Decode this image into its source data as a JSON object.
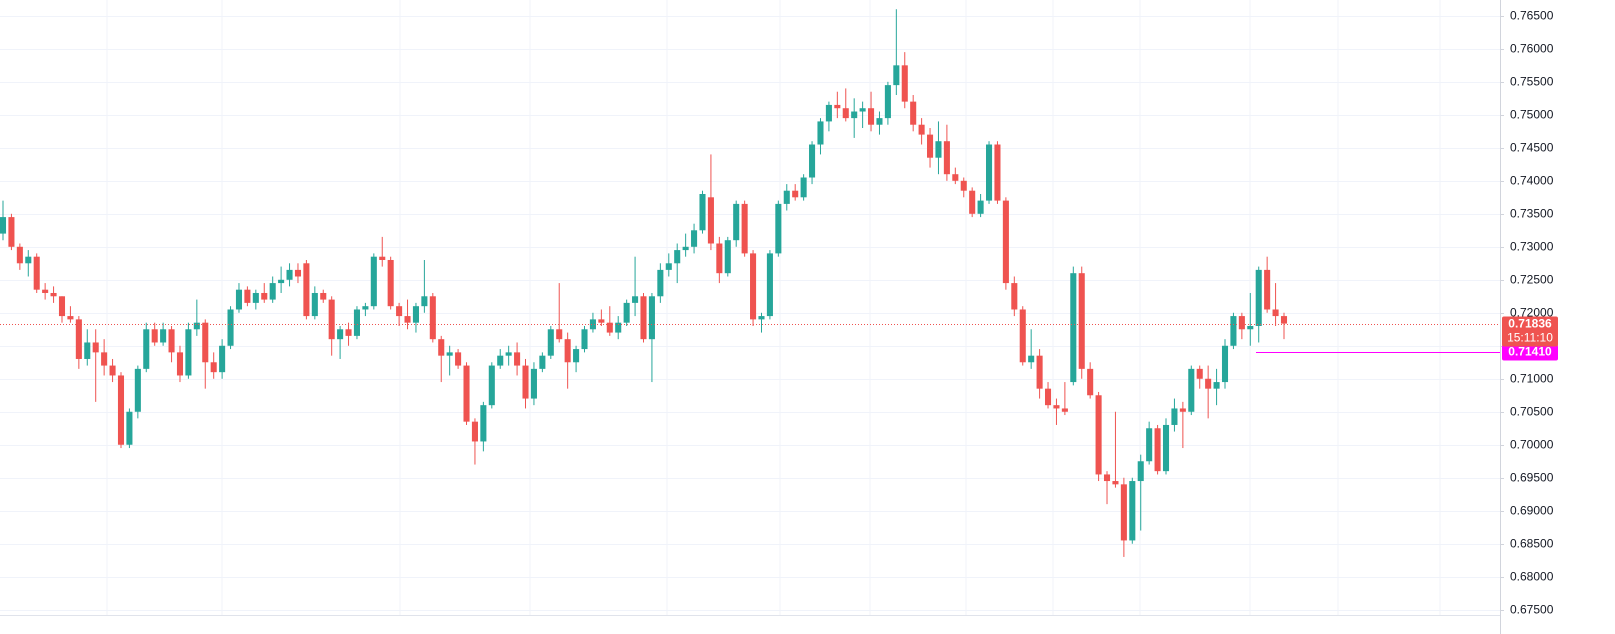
{
  "chart_data": {
    "type": "candlestick",
    "up_color": "#26a69a",
    "down_color": "#ef5350",
    "grid": true,
    "ylim": [
      0.6742,
      0.7674
    ],
    "yticks": [
      {
        "value": 0.675,
        "label": "0.67500"
      },
      {
        "value": 0.68,
        "label": "0.68000"
      },
      {
        "value": 0.685,
        "label": "0.68500"
      },
      {
        "value": 0.69,
        "label": "0.69000"
      },
      {
        "value": 0.695,
        "label": "0.69500"
      },
      {
        "value": 0.7,
        "label": "0.70000"
      },
      {
        "value": 0.705,
        "label": "0.70500"
      },
      {
        "value": 0.71,
        "label": "0.71000"
      },
      {
        "value": 0.715,
        "label": "0.71500"
      },
      {
        "value": 0.72,
        "label": "0.72000"
      },
      {
        "value": 0.725,
        "label": "0.72500"
      },
      {
        "value": 0.73,
        "label": "0.73000"
      },
      {
        "value": 0.735,
        "label": "0.73500"
      },
      {
        "value": 0.74,
        "label": "0.74000"
      },
      {
        "value": 0.745,
        "label": "0.74500"
      },
      {
        "value": 0.75,
        "label": "0.75000"
      },
      {
        "value": 0.755,
        "label": "0.75500"
      },
      {
        "value": 0.76,
        "label": "0.76000"
      },
      {
        "value": 0.765,
        "label": "0.76500"
      }
    ],
    "last_price": 0.71836,
    "countdown": "15:11:10",
    "last_price_color": "#ef5350",
    "level": {
      "value": 0.7141,
      "label": "0.71410"
    },
    "level_color": "#ff00ff",
    "ohlc": [
      [
        0.732,
        0.737,
        0.731,
        0.7345
      ],
      [
        0.7345,
        0.735,
        0.7295,
        0.73
      ],
      [
        0.73,
        0.7305,
        0.7265,
        0.7275
      ],
      [
        0.7275,
        0.7295,
        0.7255,
        0.7285
      ],
      [
        0.7285,
        0.729,
        0.723,
        0.7235
      ],
      [
        0.7235,
        0.7245,
        0.722,
        0.723
      ],
      [
        0.723,
        0.724,
        0.7215,
        0.7225
      ],
      [
        0.7225,
        0.7225,
        0.7185,
        0.7195
      ],
      [
        0.7195,
        0.721,
        0.7185,
        0.719
      ],
      [
        0.719,
        0.7195,
        0.7115,
        0.713
      ],
      [
        0.713,
        0.7175,
        0.712,
        0.7155
      ],
      [
        0.7155,
        0.7175,
        0.7065,
        0.714
      ],
      [
        0.714,
        0.716,
        0.7105,
        0.712
      ],
      [
        0.712,
        0.713,
        0.7095,
        0.7105
      ],
      [
        0.7105,
        0.711,
        0.6995,
        0.7
      ],
      [
        0.7,
        0.7055,
        0.6995,
        0.705
      ],
      [
        0.705,
        0.712,
        0.704,
        0.7115
      ],
      [
        0.7115,
        0.7185,
        0.711,
        0.7175
      ],
      [
        0.7175,
        0.7185,
        0.715,
        0.7155
      ],
      [
        0.7155,
        0.7185,
        0.715,
        0.7175
      ],
      [
        0.7175,
        0.718,
        0.7125,
        0.714
      ],
      [
        0.714,
        0.715,
        0.7095,
        0.7105
      ],
      [
        0.7105,
        0.7185,
        0.71,
        0.7175
      ],
      [
        0.7175,
        0.722,
        0.7165,
        0.7185
      ],
      [
        0.7185,
        0.719,
        0.7085,
        0.7125
      ],
      [
        0.7125,
        0.714,
        0.71,
        0.711
      ],
      [
        0.711,
        0.716,
        0.71,
        0.715
      ],
      [
        0.715,
        0.721,
        0.7145,
        0.7205
      ],
      [
        0.7205,
        0.7245,
        0.72,
        0.7235
      ],
      [
        0.7235,
        0.724,
        0.721,
        0.7215
      ],
      [
        0.7215,
        0.7235,
        0.7205,
        0.723
      ],
      [
        0.723,
        0.7245,
        0.7215,
        0.722
      ],
      [
        0.722,
        0.7255,
        0.7215,
        0.7245
      ],
      [
        0.7245,
        0.727,
        0.723,
        0.725
      ],
      [
        0.725,
        0.7275,
        0.724,
        0.7265
      ],
      [
        0.7265,
        0.7275,
        0.7245,
        0.7255
      ],
      [
        0.7275,
        0.728,
        0.719,
        0.7195
      ],
      [
        0.7195,
        0.724,
        0.719,
        0.723
      ],
      [
        0.723,
        0.7235,
        0.7215,
        0.722
      ],
      [
        0.722,
        0.7225,
        0.7135,
        0.716
      ],
      [
        0.716,
        0.718,
        0.713,
        0.7175
      ],
      [
        0.7175,
        0.7185,
        0.715,
        0.7165
      ],
      [
        0.7165,
        0.721,
        0.716,
        0.7205
      ],
      [
        0.7205,
        0.7215,
        0.7195,
        0.721
      ],
      [
        0.721,
        0.729,
        0.7205,
        0.7285
      ],
      [
        0.7285,
        0.7315,
        0.727,
        0.728
      ],
      [
        0.728,
        0.7285,
        0.7205,
        0.721
      ],
      [
        0.721,
        0.7215,
        0.718,
        0.7195
      ],
      [
        0.7195,
        0.722,
        0.7175,
        0.7185
      ],
      [
        0.7185,
        0.7215,
        0.717,
        0.721
      ],
      [
        0.721,
        0.728,
        0.72,
        0.7225
      ],
      [
        0.7225,
        0.723,
        0.7155,
        0.716
      ],
      [
        0.716,
        0.7165,
        0.7095,
        0.7135
      ],
      [
        0.7135,
        0.715,
        0.7105,
        0.714
      ],
      [
        0.714,
        0.7145,
        0.7115,
        0.712
      ],
      [
        0.712,
        0.7125,
        0.703,
        0.7035
      ],
      [
        0.7035,
        0.704,
        0.697,
        0.7005
      ],
      [
        0.7005,
        0.7065,
        0.699,
        0.706
      ],
      [
        0.706,
        0.7125,
        0.7055,
        0.712
      ],
      [
        0.712,
        0.7145,
        0.7115,
        0.7135
      ],
      [
        0.7135,
        0.715,
        0.712,
        0.714
      ],
      [
        0.714,
        0.7155,
        0.7105,
        0.712
      ],
      [
        0.712,
        0.713,
        0.7055,
        0.707
      ],
      [
        0.707,
        0.7125,
        0.706,
        0.7115
      ],
      [
        0.7115,
        0.714,
        0.711,
        0.7135
      ],
      [
        0.7135,
        0.718,
        0.713,
        0.7175
      ],
      [
        0.7175,
        0.7245,
        0.7155,
        0.716
      ],
      [
        0.716,
        0.717,
        0.7085,
        0.7125
      ],
      [
        0.7125,
        0.715,
        0.711,
        0.7145
      ],
      [
        0.7145,
        0.718,
        0.714,
        0.7175
      ],
      [
        0.7175,
        0.72,
        0.717,
        0.719
      ],
      [
        0.719,
        0.7205,
        0.718,
        0.7185
      ],
      [
        0.7185,
        0.721,
        0.7165,
        0.717
      ],
      [
        0.717,
        0.7195,
        0.716,
        0.7185
      ],
      [
        0.7185,
        0.722,
        0.718,
        0.7215
      ],
      [
        0.7215,
        0.7285,
        0.7195,
        0.7225
      ],
      [
        0.7225,
        0.723,
        0.7155,
        0.716
      ],
      [
        0.716,
        0.723,
        0.7095,
        0.7225
      ],
      [
        0.7225,
        0.7275,
        0.7215,
        0.7265
      ],
      [
        0.7265,
        0.729,
        0.7255,
        0.7275
      ],
      [
        0.7275,
        0.7305,
        0.7245,
        0.7295
      ],
      [
        0.7295,
        0.732,
        0.7285,
        0.73
      ],
      [
        0.73,
        0.7335,
        0.729,
        0.7325
      ],
      [
        0.7325,
        0.7385,
        0.732,
        0.738
      ],
      [
        0.7375,
        0.744,
        0.7295,
        0.7305
      ],
      [
        0.7305,
        0.7315,
        0.7245,
        0.726
      ],
      [
        0.726,
        0.7315,
        0.7255,
        0.731
      ],
      [
        0.731,
        0.737,
        0.73,
        0.7365
      ],
      [
        0.7365,
        0.737,
        0.7285,
        0.729
      ],
      [
        0.729,
        0.7295,
        0.718,
        0.719
      ],
      [
        0.719,
        0.72,
        0.717,
        0.7195
      ],
      [
        0.7195,
        0.7295,
        0.719,
        0.729
      ],
      [
        0.729,
        0.737,
        0.7285,
        0.7365
      ],
      [
        0.7365,
        0.7395,
        0.7355,
        0.7385
      ],
      [
        0.7385,
        0.7395,
        0.737,
        0.7375
      ],
      [
        0.7375,
        0.741,
        0.737,
        0.7405
      ],
      [
        0.7405,
        0.746,
        0.7395,
        0.7455
      ],
      [
        0.7455,
        0.7495,
        0.744,
        0.749
      ],
      [
        0.749,
        0.752,
        0.7475,
        0.7515
      ],
      [
        0.7515,
        0.7535,
        0.7495,
        0.751
      ],
      [
        0.751,
        0.754,
        0.749,
        0.7495
      ],
      [
        0.7495,
        0.7525,
        0.7465,
        0.7505
      ],
      [
        0.7505,
        0.752,
        0.748,
        0.751
      ],
      [
        0.751,
        0.7535,
        0.7475,
        0.7485
      ],
      [
        0.7485,
        0.7505,
        0.747,
        0.7495
      ],
      [
        0.7495,
        0.755,
        0.7485,
        0.7545
      ],
      [
        0.7545,
        0.766,
        0.753,
        0.7575
      ],
      [
        0.7575,
        0.7595,
        0.751,
        0.752
      ],
      [
        0.752,
        0.753,
        0.7475,
        0.7485
      ],
      [
        0.7485,
        0.7495,
        0.7455,
        0.747
      ],
      [
        0.747,
        0.748,
        0.742,
        0.7435
      ],
      [
        0.7435,
        0.749,
        0.741,
        0.746
      ],
      [
        0.746,
        0.7485,
        0.74,
        0.741
      ],
      [
        0.741,
        0.742,
        0.7395,
        0.74
      ],
      [
        0.74,
        0.7405,
        0.7375,
        0.7385
      ],
      [
        0.7385,
        0.739,
        0.7345,
        0.735
      ],
      [
        0.735,
        0.738,
        0.7345,
        0.737
      ],
      [
        0.737,
        0.746,
        0.7365,
        0.7455
      ],
      [
        0.7455,
        0.746,
        0.7365,
        0.737
      ],
      [
        0.737,
        0.7375,
        0.7235,
        0.7245
      ],
      [
        0.7245,
        0.7255,
        0.7195,
        0.7205
      ],
      [
        0.7205,
        0.721,
        0.712,
        0.7125
      ],
      [
        0.7125,
        0.7175,
        0.7115,
        0.7135
      ],
      [
        0.7135,
        0.7145,
        0.707,
        0.7085
      ],
      [
        0.7085,
        0.7095,
        0.7055,
        0.706
      ],
      [
        0.706,
        0.707,
        0.703,
        0.7055
      ],
      [
        0.7055,
        0.7095,
        0.7045,
        0.705
      ],
      [
        0.7095,
        0.727,
        0.709,
        0.726
      ],
      [
        0.726,
        0.727,
        0.71,
        0.7115
      ],
      [
        0.7115,
        0.7125,
        0.707,
        0.7075
      ],
      [
        0.7075,
        0.708,
        0.6945,
        0.6955
      ],
      [
        0.6955,
        0.696,
        0.691,
        0.6945
      ],
      [
        0.6945,
        0.705,
        0.6935,
        0.694
      ],
      [
        0.694,
        0.695,
        0.683,
        0.6855
      ],
      [
        0.6855,
        0.695,
        0.685,
        0.6945
      ],
      [
        0.6945,
        0.6985,
        0.687,
        0.6975
      ],
      [
        0.6975,
        0.7035,
        0.697,
        0.7025
      ],
      [
        0.7025,
        0.703,
        0.6955,
        0.696
      ],
      [
        0.696,
        0.704,
        0.6955,
        0.703
      ],
      [
        0.703,
        0.707,
        0.702,
        0.7055
      ],
      [
        0.7055,
        0.7065,
        0.6995,
        0.705
      ],
      [
        0.705,
        0.712,
        0.7045,
        0.7115
      ],
      [
        0.7115,
        0.712,
        0.7085,
        0.71
      ],
      [
        0.71,
        0.712,
        0.704,
        0.7085
      ],
      [
        0.7085,
        0.7115,
        0.706,
        0.7095
      ],
      [
        0.7095,
        0.716,
        0.7085,
        0.715
      ],
      [
        0.715,
        0.72,
        0.7145,
        0.7195
      ],
      [
        0.7195,
        0.72,
        0.716,
        0.7175
      ],
      [
        0.7175,
        0.723,
        0.715,
        0.718
      ],
      [
        0.718,
        0.727,
        0.7155,
        0.7265
      ],
      [
        0.7265,
        0.7285,
        0.72,
        0.7205
      ],
      [
        0.7205,
        0.7245,
        0.718,
        0.7195
      ],
      [
        0.7195,
        0.72,
        0.716,
        0.71836
      ]
    ]
  }
}
